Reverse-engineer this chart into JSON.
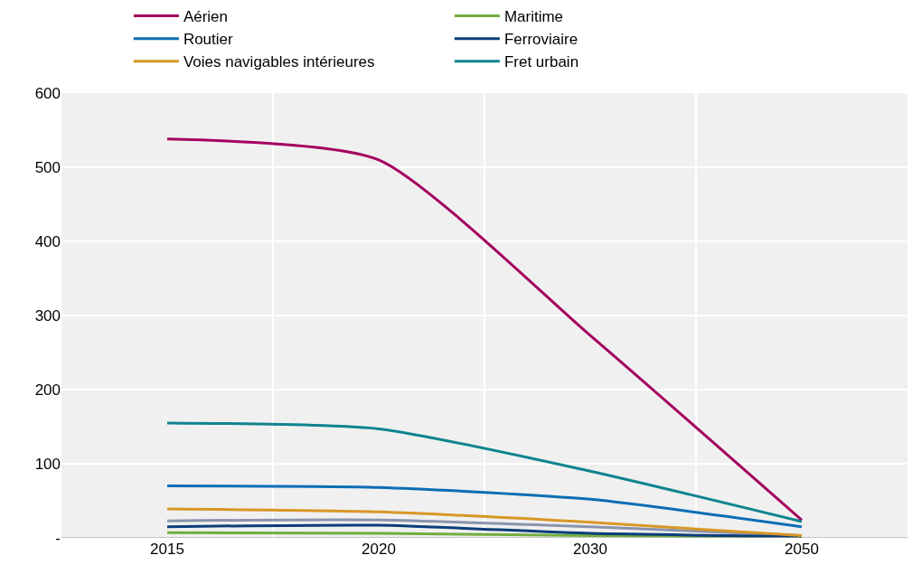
{
  "chart_data": {
    "type": "line",
    "categories": [
      "2015",
      "2020",
      "2030",
      "2050"
    ],
    "series": [
      {
        "name": "Aérien",
        "color": "#a4005f",
        "values": [
          538,
          510,
          273,
          24
        ]
      },
      {
        "name": "Maritime",
        "color": "#72ad3e",
        "values": [
          7,
          6,
          3,
          1
        ]
      },
      {
        "name": "Routier",
        "color": "#0a6eb4",
        "values": [
          70,
          68,
          52,
          15
        ]
      },
      {
        "name": "Ferroviaire",
        "color": "#0b3d7a",
        "values": [
          15,
          17,
          6,
          2
        ]
      },
      {
        "name": "Voies navigables intérieures",
        "color": "#d99726",
        "values": [
          39,
          35,
          21,
          3
        ]
      },
      {
        "name": "Fret urbain",
        "color": "#0f8390",
        "values": [
          155,
          147,
          90,
          22
        ]
      },
      {
        "color": "#8a94ad",
        "values": [
          23,
          24,
          15,
          3
        ]
      }
    ],
    "ylim": [
      0,
      600
    ],
    "yticks": [
      {
        "value": 0,
        "label": "-"
      },
      100,
      200,
      300,
      400,
      500,
      600
    ],
    "grid": true,
    "legend": "top",
    "marker": "none",
    "line_style": "solid"
  }
}
